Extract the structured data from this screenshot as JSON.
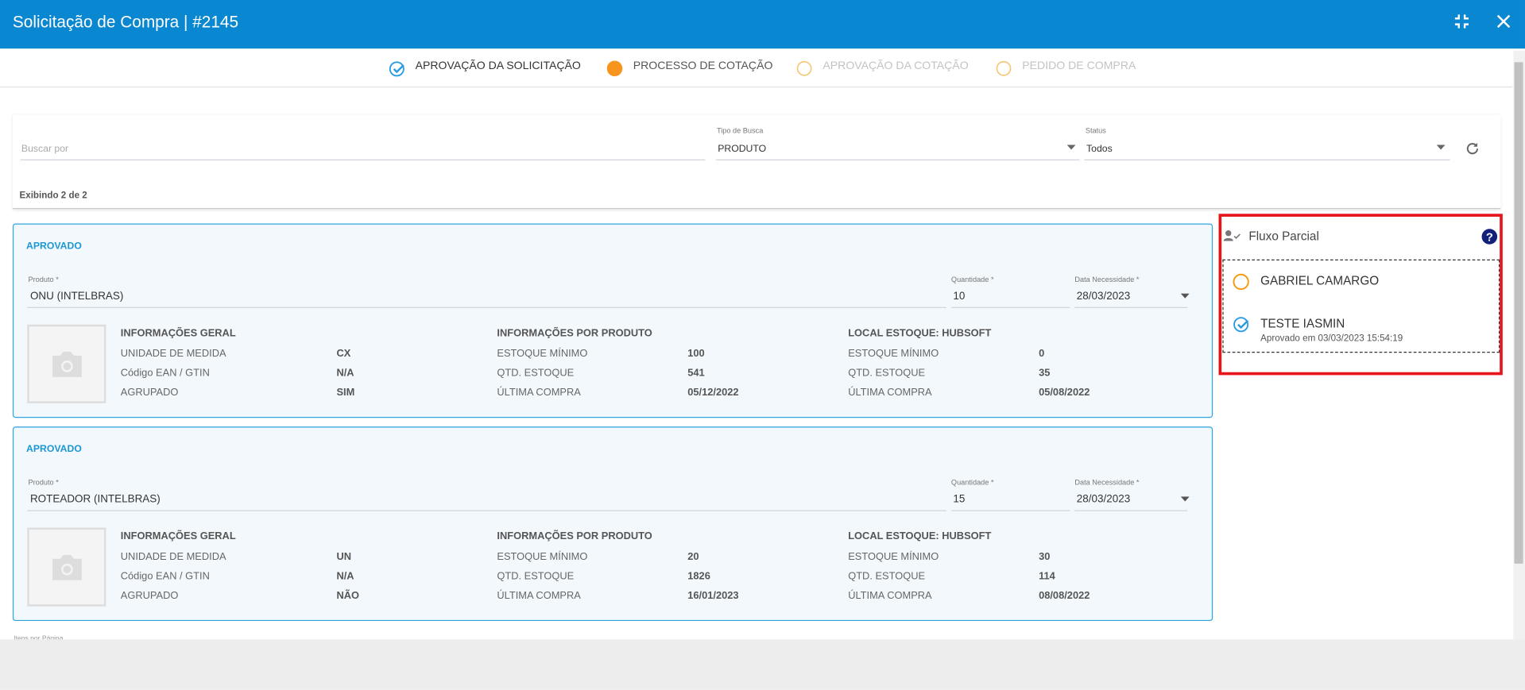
{
  "header": {
    "title": "Solicitação de Compra | #2145"
  },
  "steps": [
    "APROVAÇÃO DA SOLICITAÇÃO",
    "PROCESSO DE COTAÇÃO",
    "APROVAÇÃO DA COTAÇÃO",
    "PEDIDO DE COMPRA"
  ],
  "filters": {
    "search_placeholder": "Buscar por",
    "tipo_label": "Tipo de Busca",
    "tipo_value": "PRODUTO",
    "status_label": "Status",
    "status_value": "Todos",
    "count": "Exibindo 2 de 2"
  },
  "items": [
    {
      "status": "APROVADO",
      "produto_label": "Produto *",
      "produto": "ONU (INTELBRAS)",
      "quantidade_label": "Quantidade *",
      "quantidade": "10",
      "data_label": "Data Necessidade *",
      "data": "28/03/2023",
      "sections": [
        {
          "title": "INFORMAÇÕES GERAL",
          "rows": [
            [
              "UNIDADE DE MEDIDA",
              "CX"
            ],
            [
              "Código EAN / GTIN",
              "N/A"
            ],
            [
              "AGRUPADO",
              "SIM"
            ]
          ]
        },
        {
          "title": "INFORMAÇÕES POR PRODUTO",
          "rows": [
            [
              "ESTOQUE MÍNIMO",
              "100"
            ],
            [
              "QTD. ESTOQUE",
              "541"
            ],
            [
              "ÚLTIMA COMPRA",
              "05/12/2022"
            ]
          ]
        },
        {
          "title": "LOCAL ESTOQUE: HUBSOFT",
          "rows": [
            [
              "ESTOQUE MÍNIMO",
              "0"
            ],
            [
              "QTD. ESTOQUE",
              "35"
            ],
            [
              "ÚLTIMA COMPRA",
              "05/08/2022"
            ]
          ]
        }
      ]
    },
    {
      "status": "APROVADO",
      "produto_label": "Produto *",
      "produto": "ROTEADOR (INTELBRAS)",
      "quantidade_label": "Quantidade *",
      "quantidade": "15",
      "data_label": "Data Necessidade *",
      "data": "28/03/2023",
      "sections": [
        {
          "title": "INFORMAÇÕES GERAL",
          "rows": [
            [
              "UNIDADE DE MEDIDA",
              "UN"
            ],
            [
              "Código EAN / GTIN",
              "N/A"
            ],
            [
              "AGRUPADO",
              "NÃO"
            ]
          ]
        },
        {
          "title": "INFORMAÇÕES POR PRODUTO",
          "rows": [
            [
              "ESTOQUE MÍNIMO",
              "20"
            ],
            [
              "QTD. ESTOQUE",
              "1826"
            ],
            [
              "ÚLTIMA COMPRA",
              "16/01/2023"
            ]
          ]
        },
        {
          "title": "LOCAL ESTOQUE: HUBSOFT",
          "rows": [
            [
              "ESTOQUE MÍNIMO",
              "30"
            ],
            [
              "QTD. ESTOQUE",
              "114"
            ],
            [
              "ÚLTIMA COMPRA",
              "08/08/2022"
            ]
          ]
        }
      ]
    }
  ],
  "flow": {
    "title": "Fluxo Parcial",
    "approvers": [
      {
        "name": "GABRIEL CAMARGO"
      },
      {
        "name": "TESTE IASMIN",
        "note": "Aprovado em 03/03/2023 15:54:19"
      }
    ]
  },
  "footer": {
    "per_page": "Itens por Página"
  }
}
